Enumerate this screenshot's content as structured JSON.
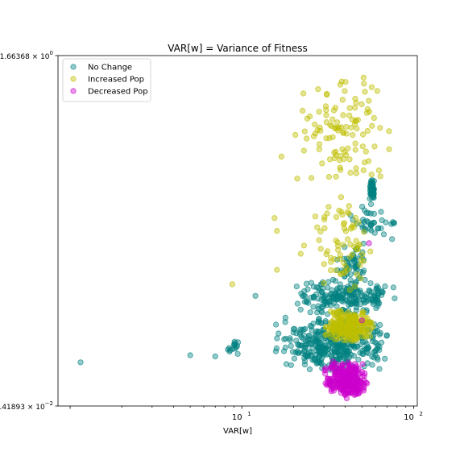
{
  "chart_data": {
    "type": "scatter",
    "title": "VAR[w] = Variance of Fitness",
    "xlabel": "VAR[w]",
    "ylabel": "",
    "x_scale": "log",
    "y_scale": "log",
    "xlim": [
      0.85,
      105
    ],
    "ylim": [
      0.0541893,
      1.66368
    ],
    "x_ticks": [
      {
        "value": 10,
        "base": "10",
        "exp": "1"
      },
      {
        "value": 100,
        "base": "10",
        "exp": "2"
      }
    ],
    "y_ticks": [
      {
        "value": 1.66368,
        "mantissa": "1.66368",
        "exp": "0"
      },
      {
        "value": 0.0541893,
        "mantissa": "5.41893",
        "exp": "−2"
      }
    ],
    "legend": {
      "position": "upper-left"
    },
    "series": [
      {
        "name": "No Change",
        "color": "#008080",
        "clusters": [
          {
            "x": [
              55,
              60
            ],
            "y": [
              0.4,
              0.5
            ],
            "n": 55
          },
          {
            "x": [
              20,
              80
            ],
            "y": [
              0.13,
              0.19
            ],
            "n": 210
          },
          {
            "x": [
              15,
              75
            ],
            "y": [
              0.075,
              0.13
            ],
            "n": 380
          },
          {
            "x": [
              40,
              80
            ],
            "y": [
              0.26,
              0.4
            ],
            "n": 40
          },
          {
            "x": [
              35,
              55
            ],
            "y": [
              0.17,
              0.28
            ],
            "n": 50
          },
          {
            "x": [
              8,
              10
            ],
            "y": [
              0.085,
              0.105
            ],
            "n": 14
          }
        ],
        "points": [
          [
            1.15,
            0.083
          ],
          [
            5.0,
            0.089
          ],
          [
            7.0,
            0.088
          ],
          [
            9.5,
            0.101
          ],
          [
            12.0,
            0.159
          ],
          [
            16,
            0.105
          ],
          [
            20,
            0.115
          ],
          [
            28,
            0.14
          ]
        ]
      },
      {
        "name": "Increased Pop",
        "color": "#bfbf00",
        "clusters": [
          {
            "x": [
              30,
              60
            ],
            "y": [
              0.1,
              0.14
            ],
            "n": 230
          },
          {
            "x": [
              20,
              75
            ],
            "y": [
              0.45,
              1.5
            ],
            "n": 110
          },
          {
            "x": [
              25,
              60
            ],
            "y": [
              0.16,
              0.45
            ],
            "n": 70
          }
        ],
        "points": [
          [
            8.8,
            0.178
          ],
          [
            16,
            0.205
          ],
          [
            17,
            0.62
          ],
          [
            15.5,
            0.34
          ],
          [
            16,
            0.3
          ],
          [
            21,
            0.5
          ],
          [
            22,
            0.24
          ],
          [
            23,
            0.26
          ],
          [
            30,
            0.18
          ],
          [
            35,
            1.0
          ],
          [
            39,
            0.78
          ]
        ]
      },
      {
        "name": "Decreased Pop",
        "color": "#cc00cc",
        "clusters": [
          {
            "x": [
              30,
              55
            ],
            "y": [
              0.058,
              0.085
            ],
            "n": 280
          }
        ],
        "points": [
          [
            55,
            0.266
          ],
          [
            50,
            0.125
          ]
        ]
      }
    ]
  }
}
